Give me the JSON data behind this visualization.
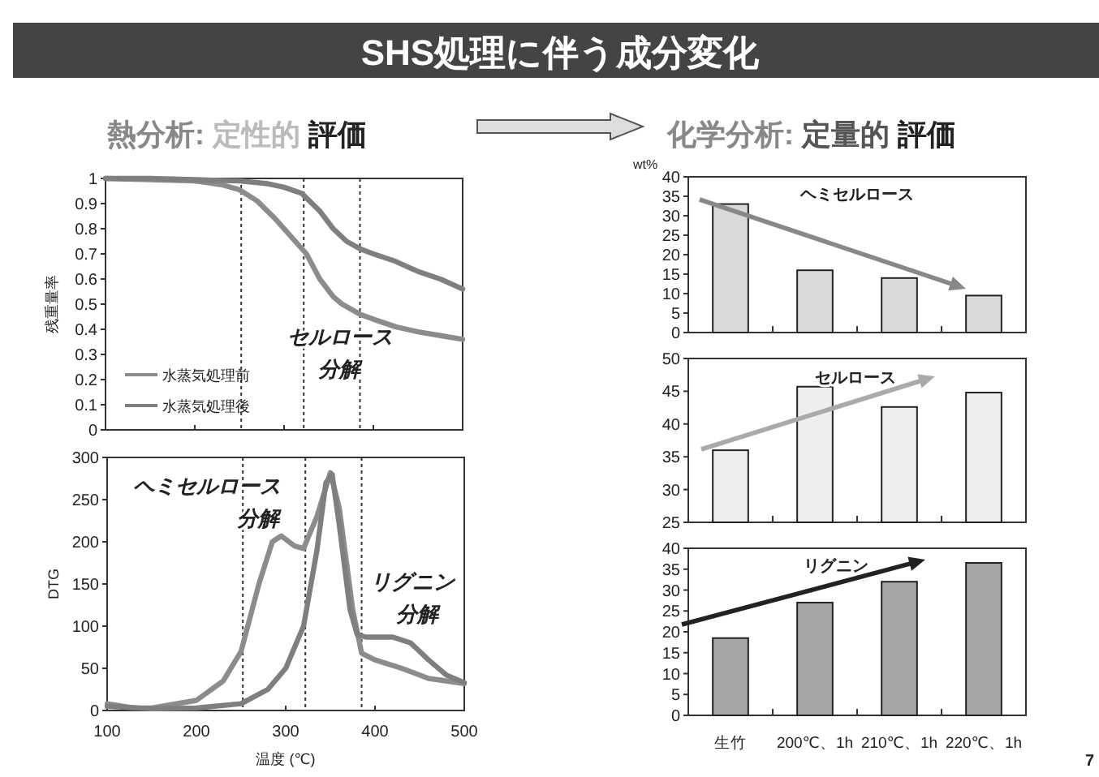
{
  "chart_data": [
    {
      "type": "line",
      "title": "SHS処理に伴う成分変化",
      "subtitle": "熱分析: 定性的 評価",
      "ylabel": "残重量率",
      "xlim": [
        100,
        500
      ],
      "xticks": [
        100,
        200,
        300,
        400,
        500
      ],
      "ylim": [
        0,
        1
      ],
      "yticks": [
        0,
        0.1,
        0.2,
        0.3,
        0.4,
        0.5,
        0.6,
        0.7,
        0.8,
        0.9,
        1
      ],
      "tick_labels": "y",
      "legend": "bottom left",
      "annotations": [
        "セルロース",
        "分解"
      ],
      "ref_lines": [
        {
          "axis": "x",
          "value": 252,
          "line_style": "dotted",
          "color": "#333333"
        },
        {
          "axis": "x",
          "value": 322,
          "line_style": "dotted",
          "color": "#333333"
        },
        {
          "axis": "x",
          "value": 385,
          "line_style": "dotted",
          "color": "#333333"
        }
      ],
      "series": [
        {
          "name": "水蒸気処理前",
          "color": "#8c8c8c",
          "x": [
            100,
            150,
            200,
            230,
            250,
            270,
            290,
            310,
            325,
            340,
            355,
            365,
            385,
            400,
            425,
            450,
            475,
            500
          ],
          "values": [
            1,
            0.995,
            0.99,
            0.975,
            0.955,
            0.91,
            0.84,
            0.76,
            0.7,
            0.6,
            0.53,
            0.5,
            0.46,
            0.44,
            0.41,
            0.39,
            0.375,
            0.36
          ]
        },
        {
          "name": "水蒸気処理後",
          "color": "#7f7f7f",
          "x": [
            100,
            150,
            200,
            250,
            280,
            300,
            320,
            340,
            355,
            370,
            385,
            400,
            425,
            450,
            475,
            500
          ],
          "values": [
            1,
            1,
            0.995,
            0.99,
            0.98,
            0.965,
            0.94,
            0.87,
            0.8,
            0.75,
            0.72,
            0.7,
            0.67,
            0.63,
            0.6,
            0.56
          ]
        }
      ]
    },
    {
      "type": "line",
      "xlabel": "温度 (℃)",
      "ylabel": "DTG",
      "xlim": [
        100,
        500
      ],
      "xticks": [
        100,
        200,
        300,
        400,
        500
      ],
      "ylim": [
        0,
        300
      ],
      "yticks": [
        0,
        50,
        100,
        150,
        200,
        250,
        300
      ],
      "annotations": [
        "ヘミセルロース",
        "分解",
        "リグニン",
        "分解"
      ],
      "ref_lines": [
        {
          "axis": "x",
          "value": 252,
          "line_style": "dotted",
          "color": "#333333"
        },
        {
          "axis": "x",
          "value": 322,
          "line_style": "dotted",
          "color": "#333333"
        },
        {
          "axis": "x",
          "value": 385,
          "line_style": "dotted",
          "color": "#333333"
        }
      ],
      "series": [
        {
          "color": "#8c8c8c",
          "x": [
            100,
            130,
            150,
            200,
            230,
            250,
            270,
            285,
            295,
            310,
            320,
            335,
            350,
            360,
            375,
            385,
            400,
            430,
            460,
            500
          ],
          "values": [
            8,
            3,
            3,
            12,
            35,
            70,
            150,
            200,
            207,
            195,
            192,
            230,
            282,
            240,
            120,
            68,
            60,
            50,
            38,
            32
          ]
        },
        {
          "color": "#7f7f7f",
          "x": [
            100,
            150,
            200,
            250,
            280,
            300,
            320,
            335,
            345,
            352,
            360,
            372,
            380,
            390,
            420,
            440,
            460,
            480,
            500
          ],
          "values": [
            5,
            2,
            3,
            8,
            25,
            50,
            100,
            190,
            270,
            280,
            220,
            120,
            90,
            87,
            87,
            80,
            60,
            42,
            33
          ]
        }
      ]
    },
    {
      "type": "bar",
      "subtitle": "化学分析: 定量的 評価",
      "ylabel": "wt%",
      "categories": [
        null,
        null,
        null,
        null
      ],
      "values": [
        33,
        16,
        14,
        9.5
      ],
      "color": "#d9d9d9",
      "ylim": [
        0,
        40
      ],
      "yticks": [
        0,
        5,
        10,
        15,
        20,
        25,
        30,
        35,
        40
      ],
      "tick_labels": "y",
      "annotations": [
        "ヘミセルロース"
      ]
    },
    {
      "type": "bar",
      "categories": [
        null,
        null,
        null,
        null
      ],
      "values": [
        36,
        45.7,
        42.6,
        44.8
      ],
      "color": "#eeeeee",
      "ylim": [
        25,
        50
      ],
      "yticks": [
        25,
        30,
        35,
        40,
        45,
        50
      ],
      "tick_labels": "y",
      "annotations": [
        "セルロース"
      ]
    },
    {
      "type": "bar",
      "categories": [
        "生竹",
        "200℃、1h",
        "210℃、1h",
        "220℃、1h"
      ],
      "values": [
        18.5,
        27,
        32,
        36.5
      ],
      "color": "#a6a6a6",
      "ylim": [
        0,
        40
      ],
      "yticks": [
        0,
        5,
        10,
        15,
        20,
        25,
        30,
        35,
        40
      ],
      "annotations": [
        "リグニン",
        "7"
      ]
    }
  ]
}
